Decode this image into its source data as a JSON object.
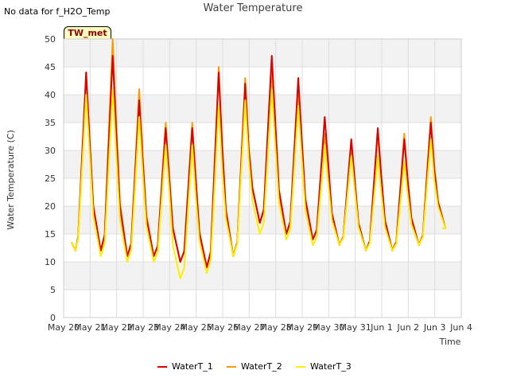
{
  "header": {
    "no_data_note": "No data for f_H2O_Temp",
    "station_badge": "TW_met"
  },
  "chart_data": {
    "type": "line",
    "title": "Water Temperature",
    "xlabel": "Time",
    "ylabel": "Water Temperature (C)",
    "ylim": [
      0,
      50
    ],
    "yticks": [
      0,
      5,
      10,
      15,
      20,
      25,
      30,
      35,
      40,
      45,
      50
    ],
    "xlim": [
      0,
      15
    ],
    "xtick_labels": [
      "May 20",
      "May 21",
      "May 22",
      "May 23",
      "May 24",
      "May 25",
      "May 26",
      "May 27",
      "May 28",
      "May 29",
      "May 30",
      "May 31",
      "Jun 1",
      "Jun 2",
      "Jun 3",
      "Jun 4"
    ],
    "grid": true,
    "background_bands": true,
    "legend_position": "bottom",
    "series": [
      {
        "name": "WaterT_1",
        "color": "#dd0000",
        "daily_min": [
          12,
          12,
          11,
          11,
          10,
          9,
          11,
          17,
          15,
          14,
          13,
          12,
          12,
          13,
          16
        ],
        "daily_max": [
          44,
          47,
          39,
          34,
          34,
          44,
          42,
          47,
          43,
          36,
          32,
          34,
          32,
          35
        ]
      },
      {
        "name": "WaterT_2",
        "color": "#ff9900",
        "daily_min": [
          12,
          12,
          11,
          11,
          10,
          9,
          11,
          17,
          15,
          14,
          13,
          12,
          12,
          13,
          16
        ],
        "daily_max": [
          44,
          50,
          41,
          35,
          35,
          45,
          43,
          44,
          40,
          33,
          31,
          33,
          33,
          36
        ]
      },
      {
        "name": "WaterT_3",
        "color": "#ffee00",
        "daily_min": [
          12,
          11,
          10,
          10,
          7,
          8,
          11,
          15,
          14,
          13,
          13,
          12,
          12,
          13,
          16
        ],
        "daily_max": [
          40,
          41,
          36,
          31,
          31,
          38,
          39,
          41,
          38,
          31,
          29,
          29,
          28,
          32
        ]
      }
    ]
  }
}
